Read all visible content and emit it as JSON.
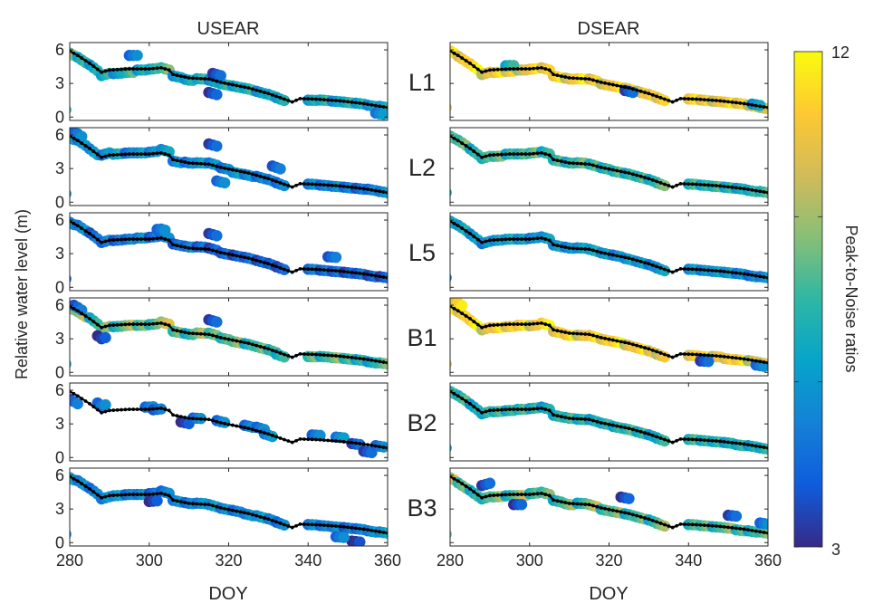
{
  "chart_data": {
    "type": "scatter",
    "column_titles": [
      "USEAR",
      "DSEAR"
    ],
    "row_labels": [
      "L1",
      "L2",
      "L5",
      "B1",
      "B2",
      "B3"
    ],
    "xlabel": "DOY",
    "ylabel": "Relative water level (m)",
    "xlim": [
      280,
      360
    ],
    "ylim": [
      -0.3,
      6.65
    ],
    "xticks": [
      280,
      300,
      320,
      340,
      360
    ],
    "yticks": [
      0,
      3,
      6
    ],
    "colorbar": {
      "label": "Peak-to-Noise ratios",
      "min": 3,
      "max": 12,
      "tick_labels": [
        "12",
        "3"
      ],
      "ticks": [
        3,
        6,
        9,
        12
      ],
      "colormap": [
        "#352a87",
        "#0f5cdd",
        "#1481d6",
        "#06a4ca",
        "#2eb7a4",
        "#87bf77",
        "#d1bb59",
        "#fec832",
        "#f9fb0e"
      ]
    },
    "reference_line": {
      "color": "#000000",
      "points": [
        [
          280,
          5.9
        ],
        [
          282,
          5.5
        ],
        [
          285,
          4.8
        ],
        [
          288,
          4.0
        ],
        [
          290,
          4.2
        ],
        [
          295,
          4.3
        ],
        [
          300,
          4.3
        ],
        [
          303,
          4.4
        ],
        [
          305,
          4.2
        ],
        [
          306,
          3.8
        ],
        [
          310,
          3.5
        ],
        [
          315,
          3.4
        ],
        [
          318,
          3.1
        ],
        [
          325,
          2.6
        ],
        [
          330,
          2.1
        ],
        [
          334,
          1.6
        ],
        [
          336,
          1.35
        ],
        [
          338,
          1.65
        ],
        [
          342,
          1.6
        ],
        [
          348,
          1.45
        ],
        [
          354,
          1.2
        ],
        [
          360,
          0.85
        ]
      ]
    },
    "doy": [
      280,
      283,
      286,
      289,
      292,
      295,
      298,
      301,
      304,
      307,
      310,
      313,
      316,
      319,
      322,
      325,
      328,
      331,
      333,
      341,
      344,
      347,
      350,
      353,
      356,
      359
    ],
    "panels": [
      {
        "column": "USEAR",
        "row": "L1",
        "level": [
          5.7,
          5.1,
          4.4,
          3.8,
          3.9,
          4.0,
          4.2,
          4.3,
          4.3,
          3.6,
          3.3,
          3.4,
          3.2,
          2.9,
          2.7,
          2.5,
          2.2,
          1.9,
          1.6,
          1.5,
          1.5,
          1.4,
          1.3,
          1.2,
          1.0,
          0.9
        ],
        "snr": [
          8,
          7,
          6.5,
          7,
          6,
          7.5,
          6.5,
          7,
          8,
          6,
          6.5,
          7,
          6,
          7,
          6.5,
          7,
          6,
          7,
          6.5,
          6.5,
          7,
          6,
          7,
          6.5,
          6,
          6.5
        ],
        "extra": [
          [
            296,
            5.5,
            5
          ],
          [
            316,
            2.1,
            3.8
          ],
          [
            317,
            3.8,
            4
          ],
          [
            358,
            0.3,
            5.5
          ]
        ]
      },
      {
        "column": "DSEAR",
        "row": "L1",
        "level": [
          5.9,
          5.2,
          4.5,
          3.9,
          4.0,
          4.1,
          4.2,
          4.3,
          4.3,
          3.6,
          3.4,
          3.4,
          3.3,
          2.9,
          2.7,
          2.5,
          2.2,
          1.9,
          1.6,
          1.6,
          1.5,
          1.4,
          1.3,
          1.2,
          1.0,
          0.8
        ],
        "snr": [
          11,
          10.5,
          11.5,
          10,
          11,
          10.5,
          9.5,
          11,
          10.5,
          11,
          10,
          11.5,
          10.5,
          10,
          11,
          10.5,
          10,
          11,
          10.5,
          11,
          10.5,
          10,
          11,
          10.5,
          10,
          9.5
        ],
        "extra": [
          [
            295,
            4.6,
            7
          ],
          [
            325,
            2.3,
            4
          ],
          [
            357,
            1.1,
            6
          ]
        ]
      },
      {
        "column": "USEAR",
        "row": "L2",
        "level": [
          5.8,
          5.3,
          4.5,
          4.3,
          4.3,
          4.4,
          4.4,
          4.5,
          4.6,
          3.6,
          3.5,
          3.5,
          3.4,
          3.0,
          2.6,
          2.4,
          2.2,
          1.9,
          1.6,
          1.6,
          1.5,
          1.4,
          1.3,
          1.2,
          1.1,
          0.9
        ],
        "snr": [
          6,
          5.5,
          6,
          5.5,
          6.5,
          5,
          6,
          5.5,
          6,
          5.5,
          5,
          6,
          5.5,
          5,
          6,
          5.5,
          5,
          5.5,
          5,
          5.5,
          5,
          5.5,
          5,
          4.5,
          5,
          5.5
        ],
        "extra": [
          [
            282,
            6.1,
            5
          ],
          [
            316,
            5.1,
            4
          ],
          [
            318,
            1.8,
            5
          ],
          [
            332,
            3.1,
            4.5
          ]
        ]
      },
      {
        "column": "DSEAR",
        "row": "L2",
        "level": [
          5.9,
          5.3,
          4.5,
          4.0,
          4.1,
          4.3,
          4.3,
          4.4,
          4.4,
          3.7,
          3.5,
          3.5,
          3.3,
          3.0,
          2.7,
          2.5,
          2.2,
          1.9,
          1.6,
          1.6,
          1.5,
          1.4,
          1.3,
          1.2,
          1.0,
          0.9
        ],
        "snr": [
          7.5,
          8,
          7,
          7.5,
          8,
          7,
          7.5,
          8,
          7,
          7.5,
          7,
          8,
          7.5,
          7,
          7.5,
          7,
          7.5,
          7,
          8,
          7.5,
          7,
          7.5,
          7,
          6.5,
          7,
          7.5
        ],
        "extra": []
      },
      {
        "column": "USEAR",
        "row": "L5",
        "level": [
          5.8,
          5.3,
          4.6,
          4.1,
          4.2,
          4.3,
          4.4,
          4.5,
          4.5,
          3.8,
          3.6,
          3.6,
          3.4,
          3.0,
          2.8,
          2.6,
          2.3,
          2.0,
          1.7,
          1.6,
          1.5,
          1.4,
          1.3,
          1.2,
          1.0,
          0.9
        ],
        "snr": [
          5,
          5.5,
          4.5,
          5,
          4.5,
          5,
          5.5,
          4.5,
          5,
          4.5,
          5,
          4.5,
          4,
          4.5,
          4,
          4.5,
          4,
          4.5,
          4,
          5,
          4.5,
          4.5,
          4,
          4.5,
          4,
          4
        ],
        "extra": [
          [
            316,
            4.7,
            4
          ],
          [
            346,
            2.7,
            4.5
          ],
          [
            303,
            5.2,
            5
          ]
        ]
      },
      {
        "column": "DSEAR",
        "row": "L5",
        "level": [
          5.9,
          5.3,
          4.5,
          4.0,
          4.2,
          4.3,
          4.3,
          4.4,
          4.4,
          3.7,
          3.5,
          3.5,
          3.3,
          3.0,
          2.8,
          2.5,
          2.2,
          1.9,
          1.6,
          1.6,
          1.5,
          1.4,
          1.3,
          1.2,
          1.0,
          0.9
        ],
        "snr": [
          6,
          6.5,
          6,
          5.5,
          6,
          6.5,
          6,
          5.5,
          6,
          6,
          5.5,
          6,
          6.5,
          6,
          5.5,
          6,
          6,
          5.5,
          6,
          6,
          5.5,
          6,
          6,
          5.5,
          5,
          5.5
        ],
        "extra": []
      },
      {
        "column": "USEAR",
        "row": "B1",
        "level": [
          5.8,
          5.2,
          4.6,
          4.0,
          4.1,
          4.2,
          4.2,
          4.3,
          4.4,
          3.6,
          3.4,
          3.5,
          3.4,
          3.0,
          2.7,
          2.5,
          2.2,
          1.9,
          1.5,
          1.4,
          1.4,
          1.3,
          1.2,
          1.1,
          0.9,
          0.8
        ],
        "snr": [
          8,
          9,
          7,
          8.5,
          7,
          9,
          8,
          7.5,
          9.5,
          8,
          7,
          9,
          8,
          7.5,
          8.5,
          7,
          8,
          7.5,
          7,
          8,
          7,
          8.5,
          7.5,
          7,
          6.5,
          8
        ],
        "extra": [
          [
            288,
            3.0,
            3.5
          ],
          [
            316,
            4.6,
            4
          ],
          [
            282,
            5.8,
            4.5
          ]
        ]
      },
      {
        "column": "DSEAR",
        "row": "B1",
        "level": [
          5.8,
          5.2,
          4.4,
          3.9,
          4.0,
          4.1,
          4.2,
          4.2,
          4.3,
          3.6,
          3.3,
          3.3,
          3.2,
          2.9,
          2.7,
          2.4,
          2.1,
          1.8,
          1.5,
          1.5,
          1.4,
          1.4,
          1.2,
          1.1,
          1.0,
          0.8
        ],
        "snr": [
          11,
          10.5,
          11.5,
          10,
          11,
          10.5,
          11,
          10,
          11.5,
          10.5,
          11,
          10,
          11,
          10.5,
          11.5,
          10,
          11,
          10.5,
          10,
          10.5,
          11,
          10,
          10.5,
          11,
          9.5,
          10
        ],
        "extra": [
          [
            282,
            6.2,
            11
          ],
          [
            344,
            1.0,
            4
          ],
          [
            358,
            0.6,
            5
          ]
        ]
      },
      {
        "column": "USEAR",
        "row": "B2",
        "level": [
          5.0,
          4.6,
          4.5,
          4.3,
          3.1,
          3.5,
          3.2,
          2.8,
          2.6,
          2.0,
          2.0,
          1.8,
          1.2,
          0.5,
          1.0
        ],
        "snr": [
          4.5,
          5,
          5,
          4.5,
          3.5,
          5,
          5,
          5,
          5,
          5.5,
          5,
          5.5,
          4,
          4,
          5
        ],
        "doy_override": [
          281,
          288,
          300,
          302,
          309,
          312,
          318,
          325,
          328,
          330,
          342,
          348,
          352,
          355,
          358
        ],
        "extra": []
      },
      {
        "column": "DSEAR",
        "row": "B2",
        "level": [
          5.9,
          5.3,
          4.5,
          4.0,
          4.1,
          4.2,
          4.3,
          4.4,
          4.4,
          3.7,
          3.5,
          3.4,
          3.3,
          3.0,
          2.7,
          2.5,
          2.2,
          1.9,
          1.6,
          1.6,
          1.5,
          1.4,
          1.3,
          1.1,
          1.0,
          0.8
        ],
        "snr": [
          7,
          7.5,
          6.5,
          7,
          7.5,
          7,
          7.5,
          7,
          6.5,
          7,
          7.5,
          7,
          6.5,
          7,
          7,
          7.5,
          7,
          6.5,
          7,
          7.5,
          7,
          7,
          6.5,
          7,
          6.5,
          7
        ],
        "extra": []
      },
      {
        "column": "USEAR",
        "row": "B3",
        "level": [
          5.8,
          5.3,
          4.6,
          4.0,
          4.2,
          4.3,
          4.3,
          4.4,
          4.5,
          3.7,
          3.5,
          3.5,
          3.3,
          3.0,
          2.8,
          2.5,
          2.3,
          2.0,
          1.7,
          1.6,
          1.5,
          1.4,
          1.3,
          1.2,
          1.0,
          0.9
        ],
        "snr": [
          6,
          5.5,
          5,
          5.5,
          6,
          5,
          5.5,
          4.5,
          5,
          5.5,
          5,
          5.5,
          6,
          5.5,
          5,
          5.5,
          6,
          5.5,
          5,
          5.5,
          5,
          5.5,
          4.5,
          5,
          5.5,
          6
        ],
        "extra": [
          [
            301,
            3.7,
            3.5
          ],
          [
            352,
            0.1,
            3.2
          ],
          [
            348,
            0.5,
            5
          ]
        ]
      },
      {
        "column": "DSEAR",
        "row": "B3",
        "level": [
          5.8,
          5.1,
          4.4,
          4.0,
          4.1,
          4.2,
          4.2,
          4.4,
          4.4,
          3.7,
          3.4,
          3.5,
          3.3,
          2.9,
          2.7,
          2.5,
          2.2,
          1.9,
          1.6,
          1.6,
          1.5,
          1.4,
          1.3,
          1.1,
          1.0,
          0.9
        ],
        "snr": [
          9,
          8,
          7,
          7.5,
          8.5,
          7,
          9,
          7.5,
          8,
          7,
          8.5,
          7,
          9,
          7.5,
          8.5,
          7,
          8,
          7,
          8.5,
          7.5,
          8,
          7,
          8.5,
          7.5,
          7,
          8
        ],
        "extra": [
          [
            289,
            5.2,
            4
          ],
          [
            297,
            3.4,
            3.8
          ],
          [
            324,
            4.0,
            3.8
          ],
          [
            351,
            2.4,
            4
          ],
          [
            359,
            1.7,
            5
          ]
        ]
      }
    ]
  }
}
